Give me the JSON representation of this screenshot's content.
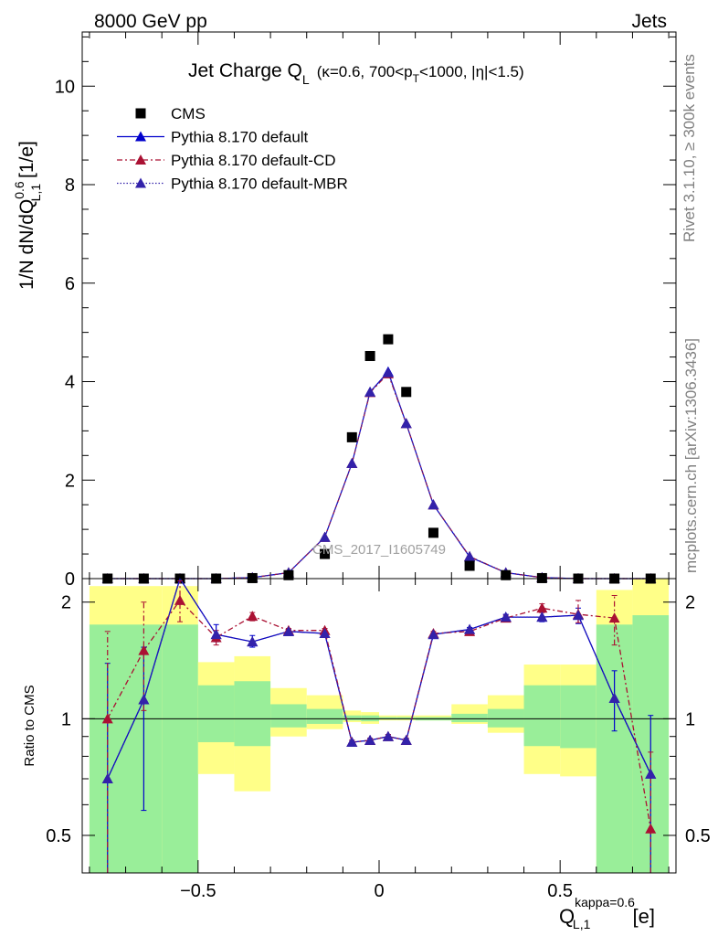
{
  "header": {
    "left": "8000 GeV pp",
    "right": "Jets"
  },
  "side_texts": {
    "rivet": "Rivet 3.1.10, ≥ 300k events",
    "mcplots": "mcplots.cern.ch [arXiv:1306.3436]"
  },
  "watermark": "CMS_2017_I1605749",
  "chart_data": [
    {
      "type": "scatter",
      "panel": "main",
      "title_main": "Jet Charge Q",
      "title_sub": "L",
      "title_detail": "(κ=0.6, 700<p",
      "title_detail_sub": "T",
      "title_detail_end": "<1000, |η|<1.5)",
      "ylabel": "1/N dN/dQ",
      "ylabel_sup": "0.6",
      "ylabel_sub": "L,1",
      "ylabel_unit": " [1/e]",
      "xlim": [
        -0.82,
        0.82
      ],
      "ylim": [
        0,
        11.1
      ],
      "yticks": [
        0,
        2,
        4,
        6,
        8,
        10
      ],
      "ytick_labels": [
        "0",
        "2",
        "4",
        "6",
        "8",
        "10"
      ],
      "legend_position": "top-left",
      "series": [
        {
          "name": "CMS",
          "marker": "square",
          "color": "#000000",
          "x": [
            -0.75,
            -0.65,
            -0.55,
            -0.45,
            -0.35,
            -0.25,
            -0.15,
            -0.075,
            -0.025,
            0.025,
            0.075,
            0.15,
            0.25,
            0.35,
            0.45,
            0.55,
            0.65,
            0.75
          ],
          "values": [
            0.0,
            0.0,
            0.0,
            0.0,
            0.01,
            0.07,
            0.5,
            2.87,
            4.52,
            4.86,
            3.79,
            0.93,
            0.26,
            0.07,
            0.01,
            0.0,
            0.0,
            0.0
          ]
        },
        {
          "name": "Pythia 8.170 default",
          "marker": "triangle",
          "color": "#0000cc",
          "line": "solid",
          "x": [
            -0.75,
            -0.65,
            -0.55,
            -0.45,
            -0.35,
            -0.25,
            -0.15,
            -0.075,
            -0.025,
            0.025,
            0.075,
            0.15,
            0.25,
            0.35,
            0.45,
            0.55,
            0.65,
            0.75
          ],
          "values": [
            0.0,
            0.0,
            0.0,
            0.0,
            0.02,
            0.12,
            0.84,
            2.34,
            3.79,
            4.2,
            3.15,
            1.5,
            0.44,
            0.12,
            0.02,
            0.0,
            0.0,
            0.0
          ]
        },
        {
          "name": "Pythia 8.170 default-CD",
          "marker": "triangle",
          "color": "#aa1133",
          "line": "dashdot",
          "x": [
            -0.75,
            -0.65,
            -0.55,
            -0.45,
            -0.35,
            -0.25,
            -0.15,
            -0.075,
            -0.025,
            0.025,
            0.075,
            0.15,
            0.25,
            0.35,
            0.45,
            0.55,
            0.65,
            0.75
          ],
          "values": [
            0.0,
            0.0,
            0.0,
            0.0,
            0.02,
            0.12,
            0.84,
            2.34,
            3.78,
            4.16,
            3.15,
            1.5,
            0.45,
            0.12,
            0.02,
            0.0,
            0.0,
            0.0
          ]
        },
        {
          "name": "Pythia 8.170 default-MBR",
          "marker": "triangle",
          "color": "#3322aa",
          "line": "dotted",
          "x": [
            -0.75,
            -0.65,
            -0.55,
            -0.45,
            -0.35,
            -0.25,
            -0.15,
            -0.075,
            -0.025,
            0.025,
            0.075,
            0.15,
            0.25,
            0.35,
            0.45,
            0.55,
            0.65,
            0.75
          ],
          "values": [
            0.0,
            0.0,
            0.0,
            0.0,
            0.02,
            0.12,
            0.84,
            2.34,
            3.79,
            4.18,
            3.15,
            1.5,
            0.45,
            0.12,
            0.02,
            0.0,
            0.0,
            0.0
          ]
        }
      ]
    },
    {
      "type": "line",
      "panel": "ratio",
      "log_y": true,
      "ylabel": "Ratio to CMS",
      "xlabel": "Q",
      "xlabel_sup": "kappa=0.6",
      "xlabel_sub": "L,1",
      "xlabel_unit": " [e]",
      "xlim": [
        -0.82,
        0.82
      ],
      "ylim": [
        0.4,
        2.3
      ],
      "xticks": [
        -0.5,
        0,
        0.5
      ],
      "xtick_labels": [
        "−0.5",
        "0",
        "0.5"
      ],
      "yticks": [
        0.5,
        1,
        2
      ],
      "ytick_labels": [
        "0.5",
        "1",
        "2"
      ],
      "reference_line": 1,
      "bins": [
        -0.8,
        -0.6,
        -0.5,
        -0.4,
        -0.3,
        -0.2,
        -0.1,
        -0.05,
        0.0,
        0.05,
        0.1,
        0.2,
        0.3,
        0.4,
        0.5,
        0.6,
        0.7,
        0.8
      ],
      "band_yellow_lo": [
        0.3,
        0.3,
        0.72,
        0.65,
        0.9,
        0.94,
        0.98,
        0.97,
        0.99,
        0.99,
        0.99,
        0.97,
        0.92,
        0.72,
        0.71,
        0.3,
        0.3
      ],
      "band_yellow_hi": [
        2.2,
        2.2,
        1.4,
        1.45,
        1.2,
        1.15,
        1.05,
        1.04,
        1.02,
        1.02,
        1.02,
        1.09,
        1.15,
        1.38,
        1.38,
        2.15,
        2.3
      ],
      "band_green_lo": [
        0.3,
        0.3,
        0.87,
        0.85,
        0.95,
        0.97,
        0.99,
        0.985,
        0.995,
        0.995,
        0.99,
        0.98,
        0.95,
        0.85,
        0.84,
        0.3,
        0.3
      ],
      "band_green_hi": [
        1.75,
        1.75,
        1.22,
        1.25,
        1.09,
        1.06,
        1.02,
        1.02,
        1.01,
        1.01,
        1.01,
        1.03,
        1.06,
        1.22,
        1.22,
        1.75,
        1.85
      ],
      "series": [
        {
          "name": "Pythia 8.170 default",
          "color": "#0000cc",
          "line": "solid",
          "x": [
            -0.75,
            -0.65,
            -0.55,
            -0.45,
            -0.35,
            -0.25,
            -0.15,
            -0.075,
            -0.025,
            0.025,
            0.075,
            0.15,
            0.25,
            0.35,
            0.45,
            0.55,
            0.65,
            0.75
          ],
          "values": [
            0.7,
            1.12,
            2.3,
            1.65,
            1.58,
            1.68,
            1.66,
            0.87,
            0.88,
            0.9,
            0.88,
            1.65,
            1.7,
            1.83,
            1.83,
            1.85,
            1.13,
            0.72
          ],
          "err_lo": [
            0.3,
            0.58,
            null,
            1.58,
            1.53,
            1.66,
            1.64,
            0.86,
            0.87,
            0.89,
            0.87,
            1.64,
            1.68,
            1.79,
            1.78,
            1.76,
            0.93,
            0.33
          ],
          "err_hi": [
            1.39,
            1.53,
            null,
            1.75,
            1.64,
            1.7,
            1.68,
            0.88,
            0.89,
            0.91,
            0.89,
            1.66,
            1.72,
            1.86,
            1.88,
            1.93,
            1.33,
            1.02
          ]
        },
        {
          "name": "Pythia 8.170 default-CD",
          "color": "#aa1133",
          "line": "dashdot",
          "x": [
            -0.75,
            -0.65,
            -0.55,
            -0.45,
            -0.35,
            -0.25,
            -0.15,
            -0.075,
            -0.025,
            0.025,
            0.075,
            0.15,
            0.25,
            0.35,
            0.45,
            0.55,
            0.65,
            0.75
          ],
          "values": [
            1.0,
            1.5,
            2.02,
            1.62,
            1.84,
            1.69,
            1.69,
            0.87,
            0.88,
            0.9,
            0.88,
            1.66,
            1.68,
            1.82,
            1.93,
            1.86,
            1.82,
            0.52
          ],
          "err_lo": [
            0.3,
            1.05,
            1.78,
            1.55,
            1.79,
            1.67,
            1.66,
            0.86,
            0.87,
            0.89,
            0.87,
            1.64,
            1.66,
            1.79,
            1.88,
            1.77,
            1.55,
            0.3
          ],
          "err_hi": [
            1.68,
            2.0,
            2.27,
            1.69,
            1.88,
            1.71,
            1.71,
            0.88,
            0.89,
            0.91,
            0.89,
            1.68,
            1.7,
            1.85,
            1.98,
            2.02,
            2.08,
            0.82
          ]
        },
        {
          "name": "Pythia 8.170 default-MBR",
          "color": "#3322aa",
          "line": "dotted",
          "x": [
            -0.75,
            -0.65,
            -0.55,
            -0.45,
            -0.35,
            -0.25,
            -0.15,
            -0.075,
            -0.025,
            0.025,
            0.075,
            0.15,
            0.25,
            0.35,
            0.45,
            0.55,
            0.65,
            0.75
          ],
          "values": [
            0.7,
            1.12,
            2.3,
            1.65,
            1.58,
            1.68,
            1.66,
            0.87,
            0.88,
            0.9,
            0.88,
            1.65,
            1.7,
            1.83,
            1.83,
            1.85,
            1.13,
            0.72
          ]
        }
      ]
    }
  ]
}
